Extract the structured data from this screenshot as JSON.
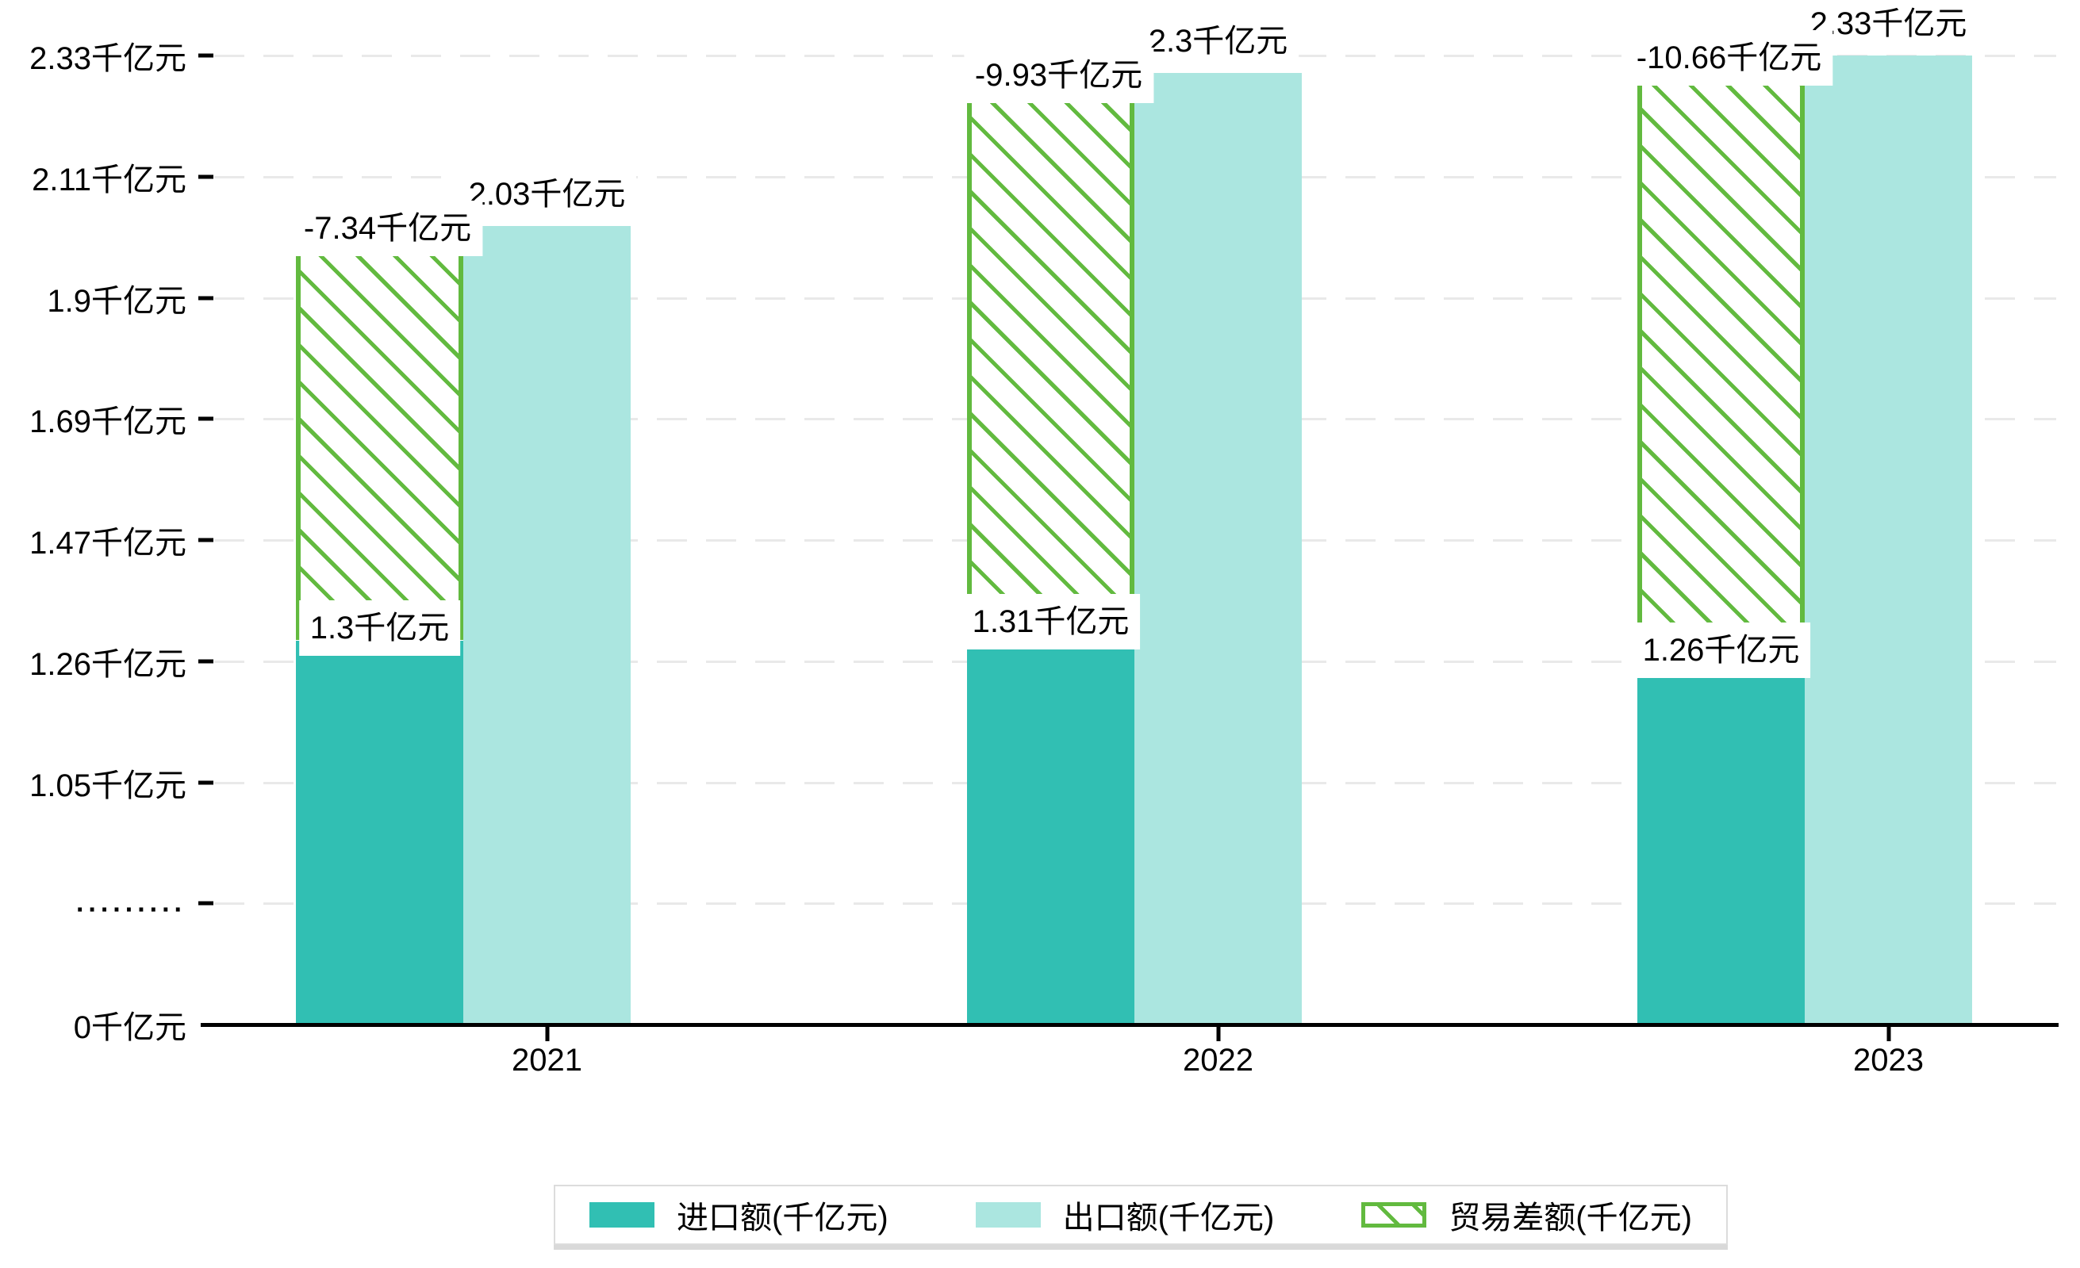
{
  "chart_data": {
    "type": "bar",
    "categories": [
      "2021",
      "2022",
      "2023"
    ],
    "series": [
      {
        "name": "进口额(千亿元)",
        "key": "import",
        "values": [
          1.3,
          1.31,
          1.26
        ],
        "bar_labels": [
          "1.3千亿元",
          "1.31千亿元",
          "1.26千亿元"
        ],
        "style": "solid"
      },
      {
        "name": "出口额(千亿元)",
        "key": "export",
        "values": [
          2.03,
          2.3,
          2.33
        ],
        "bar_labels": [
          "2.03千亿元",
          "2.3千亿元",
          "2.33千亿元"
        ],
        "style": "solid"
      },
      {
        "name": "贸易差额(千亿元)",
        "key": "trade-balance",
        "values": [
          -7.34,
          -9.93,
          -10.66
        ],
        "bar_labels": [
          "-7.34千亿元",
          "-9.93千亿元",
          "-10.66千亿元"
        ],
        "style": "hatched"
      }
    ],
    "y_axis": {
      "tick_labels": [
        "0千亿元",
        ".........",
        "1.05千亿元",
        "1.26千亿元",
        "1.47千亿元",
        "1.69千亿元",
        "1.9千亿元",
        "2.11千亿元",
        "2.33千亿元"
      ],
      "tick_values": [
        0,
        null,
        1.05,
        1.26,
        1.47,
        1.69,
        1.9,
        2.11,
        2.33
      ],
      "axis_break": true
    },
    "x_axis": {
      "tick_labels": [
        "2021",
        "2022",
        "2023"
      ]
    },
    "legend": {
      "position": "bottom"
    },
    "grid": {
      "horizontal": true,
      "style": "dashed"
    }
  },
  "colors": {
    "import": "#31bfb3",
    "export": "#abe6e0",
    "balance_green": "#62ba3f",
    "grid": "#e9e9e9",
    "axis": "#000000",
    "label_bg": "#ffffff",
    "legend_border": "#dcdcdc"
  }
}
